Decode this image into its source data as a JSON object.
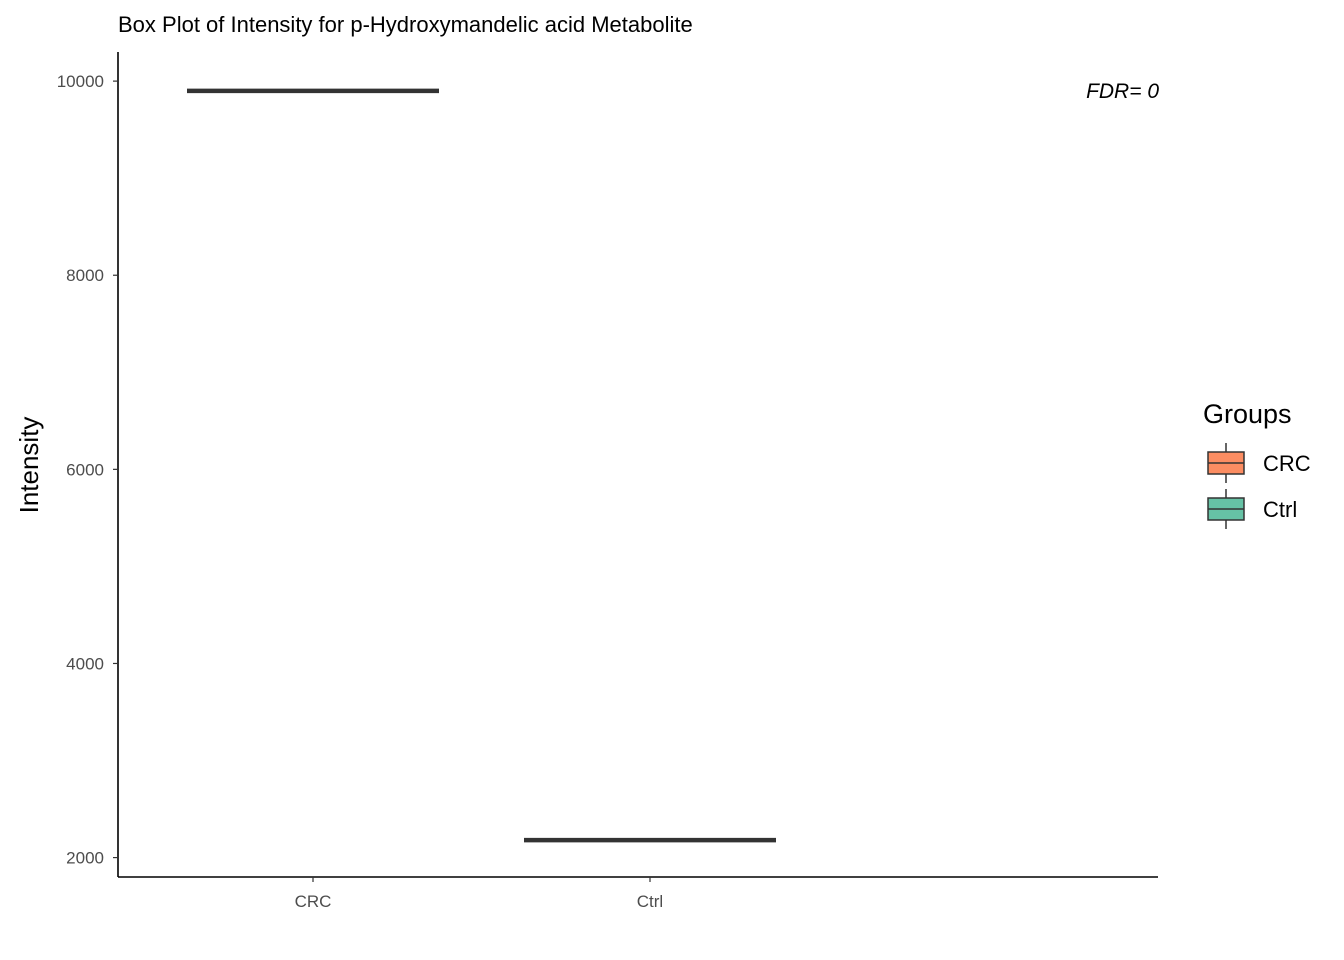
{
  "chart_data": {
    "type": "box",
    "title": "Box Plot of Intensity for p-Hydroxymandelic acid Metabolite",
    "xlabel": "",
    "ylabel": "Intensity",
    "categories": [
      "CRC",
      "Ctrl"
    ],
    "series": [
      {
        "name": "CRC",
        "median": 9900,
        "color": "#FC8D62"
      },
      {
        "name": "Ctrl",
        "median": 2180,
        "color": "#66C2A5"
      }
    ],
    "ylim": [
      1800,
      10300
    ],
    "yticks": [
      2000,
      4000,
      6000,
      8000,
      10000
    ],
    "yticks_text": [
      "2000",
      "4000",
      "6000",
      "8000",
      "10000"
    ],
    "grid": false,
    "annotation": "FDR= 0",
    "legend": {
      "title": "Groups",
      "position": "right",
      "items": [
        {
          "label": "CRC",
          "color": "#FC8D62"
        },
        {
          "label": "Ctrl",
          "color": "#66C2A5"
        }
      ]
    }
  }
}
